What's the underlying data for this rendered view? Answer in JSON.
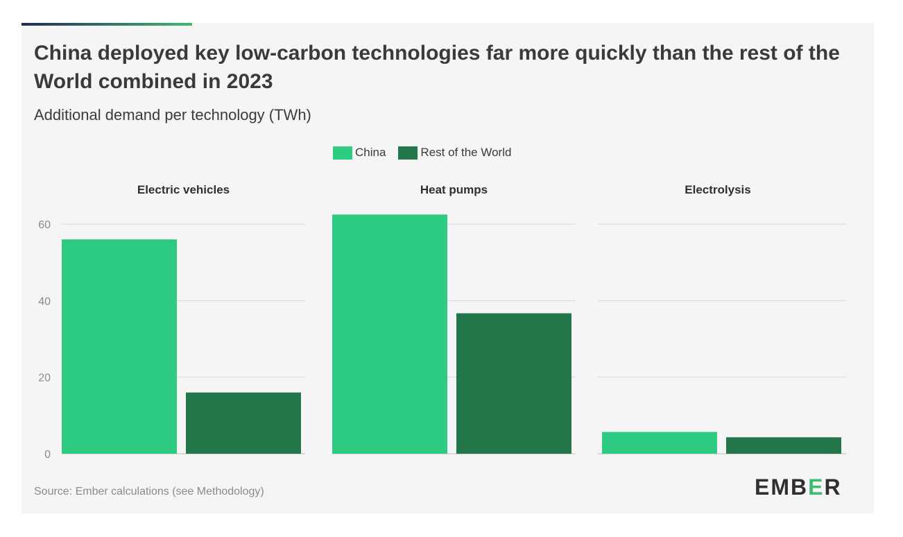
{
  "title": "China deployed key low-carbon technologies far more quickly than the rest of the World combined in 2023",
  "subtitle": "Additional demand per technology (TWh)",
  "source": "Source: Ember calculations (see Methodology)",
  "logo_text": "EMBER",
  "colors": {
    "china": "#2ecc82",
    "rest_of_world": "#23764a",
    "accent_left": "#1f2a5a",
    "accent_right": "#3dbb72"
  },
  "chart_data": {
    "type": "bar",
    "title": "China deployed key low-carbon technologies far more quickly than the rest of the World combined in 2023",
    "subtitle": "Additional demand per technology (TWh)",
    "legend_position": "top-center",
    "grid": true,
    "ylim": [
      0,
      60
    ],
    "yticks": [
      0,
      20,
      40,
      60
    ],
    "categories": [
      "Electric vehicles",
      "Heat pumps",
      "Electrolysis"
    ],
    "series": [
      {
        "name": "China",
        "values": [
          56,
          62.5,
          5.7
        ]
      },
      {
        "name": "Rest of the World",
        "values": [
          16,
          36.7,
          4.3
        ]
      }
    ]
  }
}
